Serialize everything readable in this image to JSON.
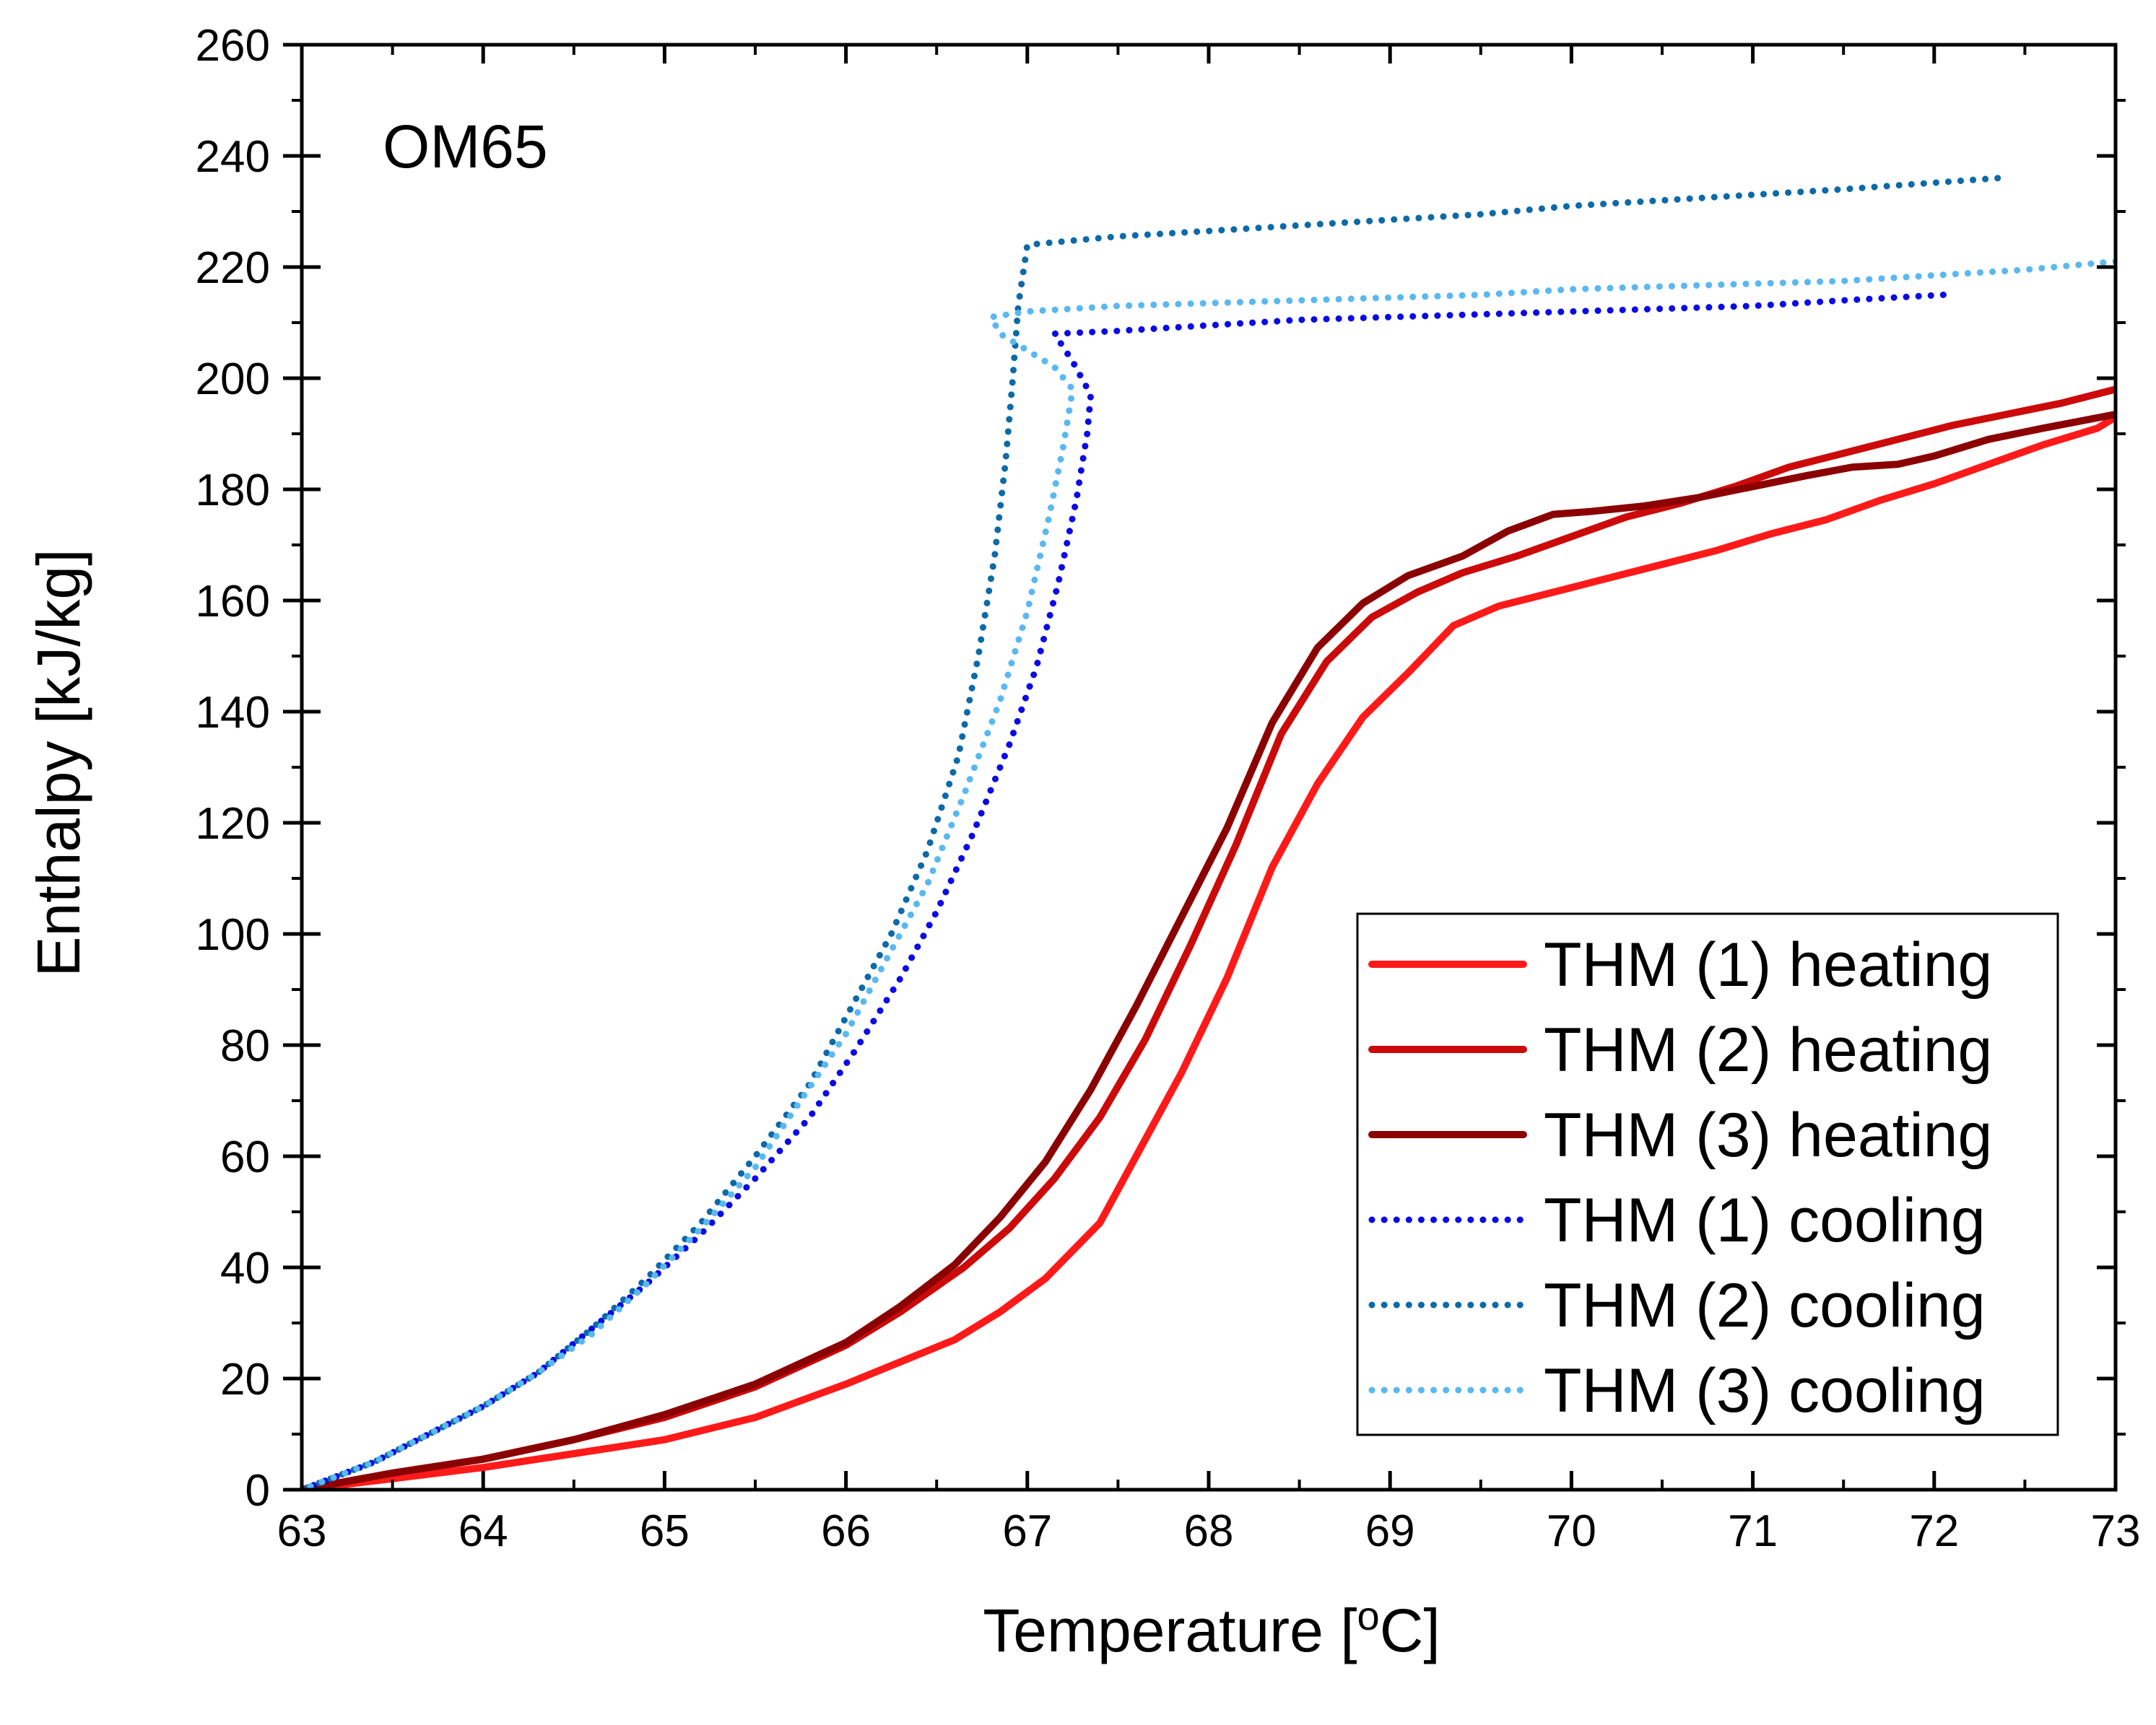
{
  "chart_data": {
    "type": "line",
    "annotation": "OM65",
    "xlabel": "Temperature [",
    "xlabel_unit": "o",
    "xlabel_end": "C]",
    "ylabel": "Enthalpy [kJ/kg]",
    "xlim": [
      63,
      73
    ],
    "ylim": [
      0,
      260
    ],
    "x_ticks": [
      "63",
      "64",
      "65",
      "66",
      "67",
      "68",
      "69",
      "70",
      "71",
      "72",
      "73"
    ],
    "y_ticks": [
      "0",
      "20",
      "40",
      "60",
      "80",
      "100",
      "120",
      "140",
      "160",
      "180",
      "200",
      "220",
      "240",
      "260"
    ],
    "grid": false,
    "legend_position": "bottom-right",
    "series": [
      {
        "name": "THM (1) heating",
        "color": "#ff1a1a",
        "style": "solid",
        "points": [
          [
            63.0,
            0
          ],
          [
            63.5,
            2
          ],
          [
            64.0,
            4
          ],
          [
            64.5,
            6.5
          ],
          [
            65.0,
            9
          ],
          [
            65.5,
            13
          ],
          [
            66.0,
            19
          ],
          [
            66.3,
            23
          ],
          [
            66.6,
            27
          ],
          [
            66.85,
            32
          ],
          [
            67.1,
            38
          ],
          [
            67.4,
            48
          ],
          [
            67.6,
            60
          ],
          [
            67.85,
            75
          ],
          [
            68.1,
            92
          ],
          [
            68.35,
            112
          ],
          [
            68.6,
            127
          ],
          [
            68.85,
            139
          ],
          [
            69.1,
            147
          ],
          [
            69.35,
            155.5
          ],
          [
            69.6,
            159
          ],
          [
            69.9,
            161.5
          ],
          [
            70.2,
            164
          ],
          [
            70.5,
            166.5
          ],
          [
            70.8,
            169
          ],
          [
            71.1,
            172
          ],
          [
            71.4,
            174.5
          ],
          [
            71.7,
            178
          ],
          [
            72.0,
            181
          ],
          [
            72.3,
            184.5
          ],
          [
            72.6,
            188
          ],
          [
            72.9,
            191
          ],
          [
            73.0,
            193
          ]
        ]
      },
      {
        "name": "THM (2) heating",
        "color": "#cc0a0a",
        "style": "solid",
        "points": [
          [
            63.0,
            0
          ],
          [
            63.5,
            3
          ],
          [
            64.0,
            5.5
          ],
          [
            64.5,
            9
          ],
          [
            65.0,
            13
          ],
          [
            65.5,
            18.5
          ],
          [
            66.0,
            26
          ],
          [
            66.3,
            32
          ],
          [
            66.65,
            40
          ],
          [
            66.9,
            47
          ],
          [
            67.15,
            56
          ],
          [
            67.4,
            67
          ],
          [
            67.65,
            81
          ],
          [
            67.9,
            98
          ],
          [
            68.15,
            116
          ],
          [
            68.4,
            136
          ],
          [
            68.65,
            149
          ],
          [
            68.9,
            157
          ],
          [
            69.15,
            161.5
          ],
          [
            69.4,
            165
          ],
          [
            69.7,
            168
          ],
          [
            70.0,
            171.5
          ],
          [
            70.3,
            175
          ],
          [
            70.6,
            177.5
          ],
          [
            70.9,
            180.5
          ],
          [
            71.2,
            184
          ],
          [
            71.5,
            186.5
          ],
          [
            71.8,
            189
          ],
          [
            72.1,
            191.5
          ],
          [
            72.4,
            193.5
          ],
          [
            72.7,
            195.5
          ],
          [
            73.0,
            198
          ]
        ]
      },
      {
        "name": "THM (3) heating",
        "color": "#8b0000",
        "style": "solid",
        "points": [
          [
            63.0,
            0
          ],
          [
            63.5,
            3
          ],
          [
            64.0,
            5.5
          ],
          [
            64.5,
            9
          ],
          [
            65.0,
            13.5
          ],
          [
            65.5,
            19
          ],
          [
            66.0,
            26.5
          ],
          [
            66.3,
            33
          ],
          [
            66.6,
            40.5
          ],
          [
            66.85,
            49
          ],
          [
            67.1,
            59
          ],
          [
            67.35,
            72
          ],
          [
            67.6,
            87
          ],
          [
            67.85,
            103
          ],
          [
            68.1,
            119
          ],
          [
            68.35,
            138
          ],
          [
            68.6,
            151.5
          ],
          [
            68.85,
            159.5
          ],
          [
            69.1,
            164.5
          ],
          [
            69.4,
            168
          ],
          [
            69.65,
            172.5
          ],
          [
            69.9,
            175.5
          ],
          [
            70.1,
            176
          ],
          [
            70.4,
            177
          ],
          [
            70.7,
            178.5
          ],
          [
            71.0,
            180.5
          ],
          [
            71.3,
            182.5
          ],
          [
            71.55,
            184
          ],
          [
            71.8,
            184.5
          ],
          [
            72.0,
            186
          ],
          [
            72.3,
            189
          ],
          [
            72.6,
            191
          ],
          [
            73.0,
            193.5
          ]
        ]
      },
      {
        "name": "THM (1) cooling",
        "color": "#0a0ae6",
        "style": "dotted",
        "points": [
          [
            72.05,
            215
          ],
          [
            71.5,
            214
          ],
          [
            71.0,
            213
          ],
          [
            70.5,
            212.5
          ],
          [
            70.0,
            212
          ],
          [
            69.5,
            211.5
          ],
          [
            69.0,
            211
          ],
          [
            68.5,
            210.5
          ],
          [
            68.0,
            209.5
          ],
          [
            67.5,
            208.5
          ],
          [
            67.15,
            208
          ],
          [
            67.25,
            203
          ],
          [
            67.35,
            197
          ],
          [
            67.33,
            190
          ],
          [
            67.27,
            178
          ],
          [
            67.17,
            163
          ],
          [
            67.05,
            148
          ],
          [
            66.9,
            134
          ],
          [
            66.7,
            118
          ],
          [
            66.5,
            104
          ],
          [
            66.3,
            92
          ],
          [
            66.05,
            79
          ],
          [
            65.8,
            67
          ],
          [
            65.5,
            56
          ],
          [
            65.2,
            46
          ],
          [
            64.9,
            37
          ],
          [
            64.6,
            29
          ],
          [
            64.3,
            21
          ],
          [
            64.0,
            15
          ],
          [
            63.7,
            10
          ],
          [
            63.4,
            5
          ],
          [
            63.0,
            0
          ]
        ]
      },
      {
        "name": "THM (2) cooling",
        "color": "#0c6aa8",
        "style": "dotted",
        "points": [
          [
            72.35,
            236
          ],
          [
            71.5,
            234
          ],
          [
            71.0,
            233
          ],
          [
            70.5,
            232
          ],
          [
            70.0,
            231
          ],
          [
            69.5,
            229.5
          ],
          [
            69.0,
            228.5
          ],
          [
            68.5,
            227.5
          ],
          [
            68.0,
            226.5
          ],
          [
            67.5,
            225.5
          ],
          [
            67.0,
            224
          ],
          [
            66.95,
            213
          ],
          [
            66.92,
            200
          ],
          [
            66.88,
            185
          ],
          [
            66.82,
            168
          ],
          [
            66.73,
            150
          ],
          [
            66.62,
            132
          ],
          [
            66.45,
            115
          ],
          [
            66.25,
            100
          ],
          [
            66.0,
            85
          ],
          [
            65.8,
            73
          ],
          [
            65.5,
            60
          ],
          [
            65.2,
            48
          ],
          [
            64.9,
            38
          ],
          [
            64.6,
            29
          ],
          [
            64.3,
            21
          ],
          [
            64.0,
            15
          ],
          [
            63.7,
            10
          ],
          [
            63.4,
            5
          ],
          [
            63.0,
            0
          ]
        ]
      },
      {
        "name": "THM (3) cooling",
        "color": "#5ab8f0",
        "style": "dotted",
        "points": [
          [
            73.0,
            221
          ],
          [
            72.5,
            219.5
          ],
          [
            72.0,
            218.5
          ],
          [
            71.5,
            217.5
          ],
          [
            71.0,
            217
          ],
          [
            70.5,
            216.5
          ],
          [
            70.0,
            216
          ],
          [
            69.5,
            215
          ],
          [
            69.0,
            214.5
          ],
          [
            68.5,
            214
          ],
          [
            68.0,
            213.5
          ],
          [
            67.5,
            213
          ],
          [
            67.0,
            212
          ],
          [
            66.8,
            211
          ],
          [
            66.85,
            208
          ],
          [
            67.0,
            205
          ],
          [
            67.15,
            202
          ],
          [
            67.25,
            198
          ],
          [
            67.2,
            188
          ],
          [
            67.12,
            175
          ],
          [
            67.0,
            158
          ],
          [
            66.85,
            142
          ],
          [
            66.65,
            125
          ],
          [
            66.45,
            109
          ],
          [
            66.2,
            94
          ],
          [
            66.0,
            82
          ],
          [
            65.75,
            70
          ],
          [
            65.5,
            58
          ],
          [
            65.2,
            47
          ],
          [
            64.9,
            37
          ],
          [
            64.6,
            28
          ],
          [
            64.3,
            21
          ],
          [
            64.0,
            15
          ],
          [
            63.7,
            10
          ],
          [
            63.4,
            5
          ],
          [
            63.0,
            0
          ]
        ]
      }
    ]
  }
}
